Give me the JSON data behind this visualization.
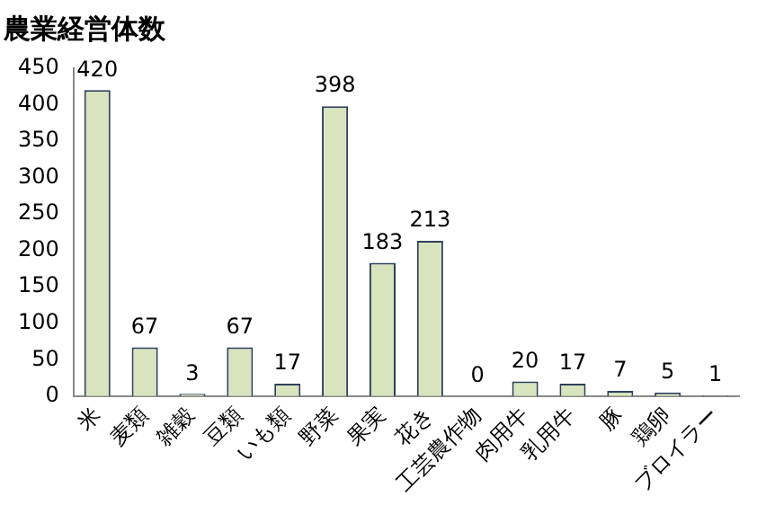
{
  "chart_data": {
    "type": "bar",
    "title": "農業経営体数",
    "categories": [
      "米",
      "麦類",
      "雑穀",
      "豆類",
      "いも類",
      "野菜",
      "果実",
      "花き",
      "工芸農作物",
      "肉用牛",
      "乳用牛",
      "豚",
      "鶏卵",
      "ブロイラー"
    ],
    "values": [
      420,
      67,
      3,
      67,
      17,
      398,
      183,
      213,
      0,
      20,
      17,
      7,
      5,
      1
    ],
    "color": "#d7e4bd",
    "ylim": [
      0,
      450
    ],
    "yticks": [
      0,
      50,
      100,
      150,
      200,
      250,
      300,
      350,
      400,
      450
    ],
    "grid": false,
    "legend": false,
    "data_labels": true
  }
}
